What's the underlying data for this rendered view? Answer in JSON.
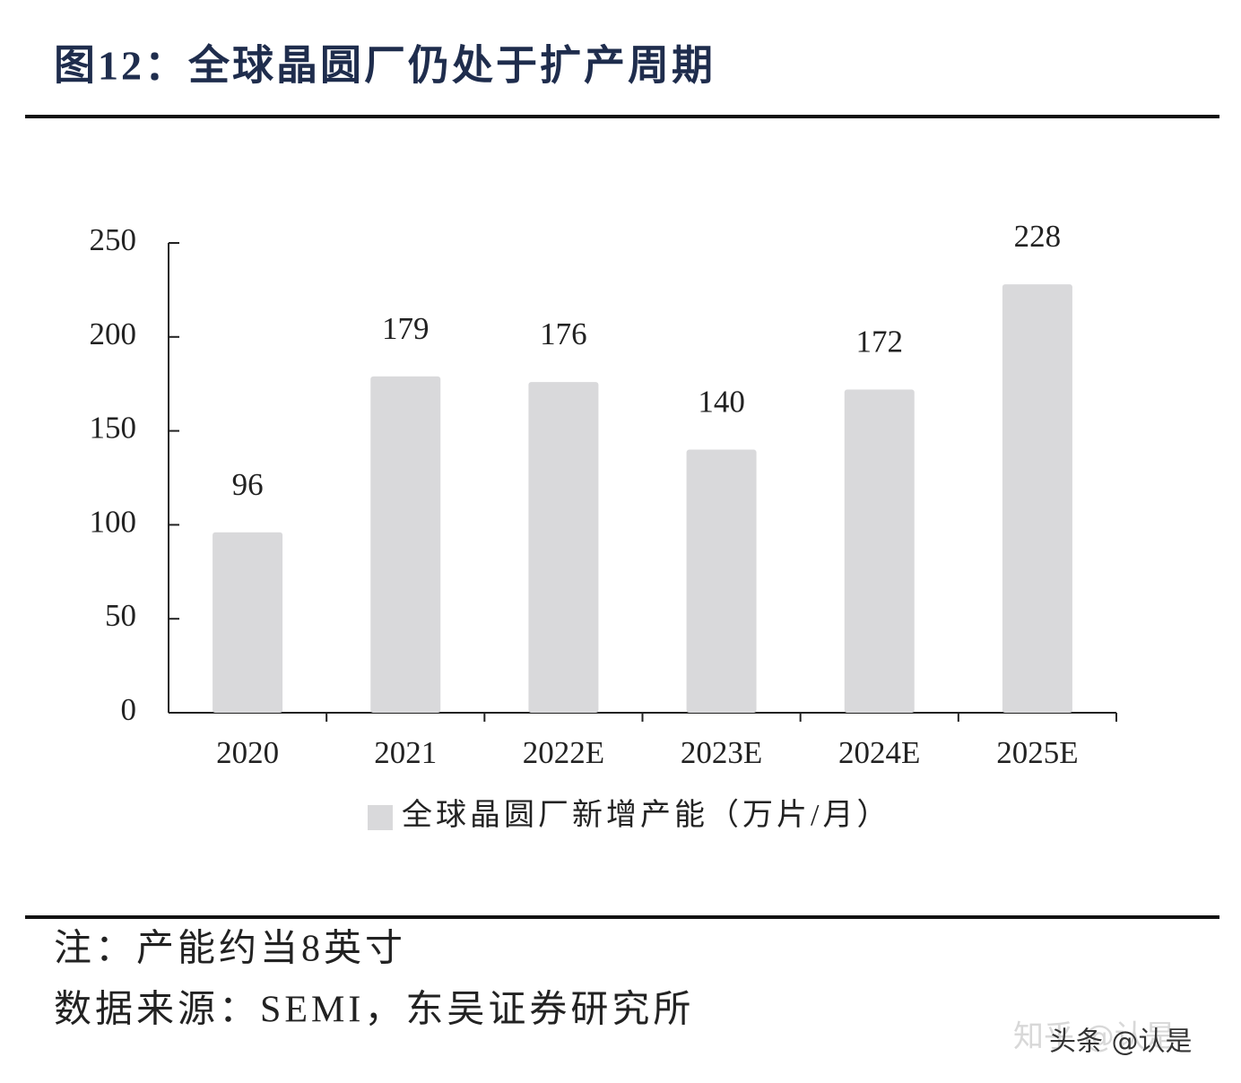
{
  "chart_data": {
    "type": "bar",
    "title": "图12：全球晶圆厂仍处于扩产周期",
    "categories": [
      "2020",
      "2021",
      "2022E",
      "2023E",
      "2024E",
      "2025E"
    ],
    "series": [
      {
        "name": "全球晶圆厂新增产能（万片/月）",
        "color": "#d9d9db",
        "values": [
          96,
          179,
          176,
          140,
          172,
          228
        ]
      }
    ],
    "ylim": [
      0,
      250
    ],
    "yticks": [
      0,
      50,
      100,
      150,
      200,
      250
    ],
    "grid": false,
    "legend": "bottom"
  },
  "notes": [
    "注：产能约当8英寸",
    "数据来源：SEMI，东吴证券研究所"
  ],
  "watermark": [
    "知乎 @认是",
    "头条 @认是"
  ]
}
